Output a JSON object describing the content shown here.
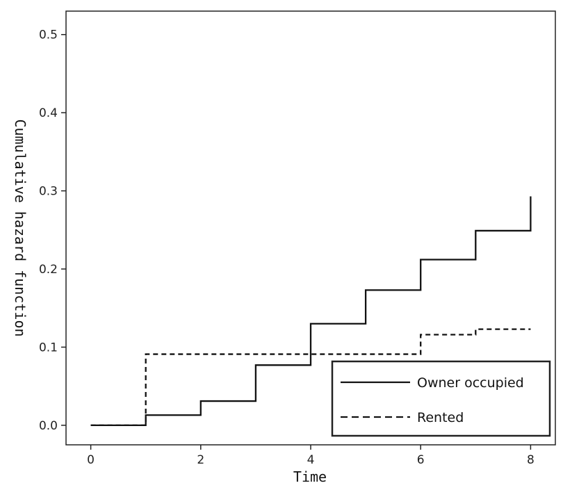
{
  "chart_data": {
    "type": "line",
    "step": true,
    "xlabel": "Time",
    "ylabel": "Cumulative hazard function",
    "xlim": [
      -0.45,
      8.45
    ],
    "ylim": [
      -0.025,
      0.53
    ],
    "xticks": [
      0,
      2,
      4,
      6,
      8
    ],
    "xtick_labels": [
      "0",
      "2",
      "4",
      "6",
      "8"
    ],
    "yticks": [
      0.0,
      0.1,
      0.2,
      0.3,
      0.4,
      0.5
    ],
    "ytick_labels": [
      "0.0",
      "0.1",
      "0.2",
      "0.3",
      "0.4",
      "0.5"
    ],
    "grid": false,
    "legend_position": "bottom-right",
    "series": [
      {
        "name": "Owner occupied",
        "line_style": "solid",
        "color": "#111111",
        "x": [
          0,
          1,
          2,
          3,
          4,
          5,
          6,
          7,
          8
        ],
        "y": [
          0.0,
          0.013,
          0.031,
          0.077,
          0.13,
          0.173,
          0.212,
          0.249,
          0.293
        ]
      },
      {
        "name": "Rented",
        "line_style": "dashed",
        "color": "#111111",
        "x": [
          0,
          1,
          6,
          7,
          8
        ],
        "y": [
          0.0,
          0.091,
          0.116,
          0.123,
          0.123
        ]
      }
    ]
  }
}
